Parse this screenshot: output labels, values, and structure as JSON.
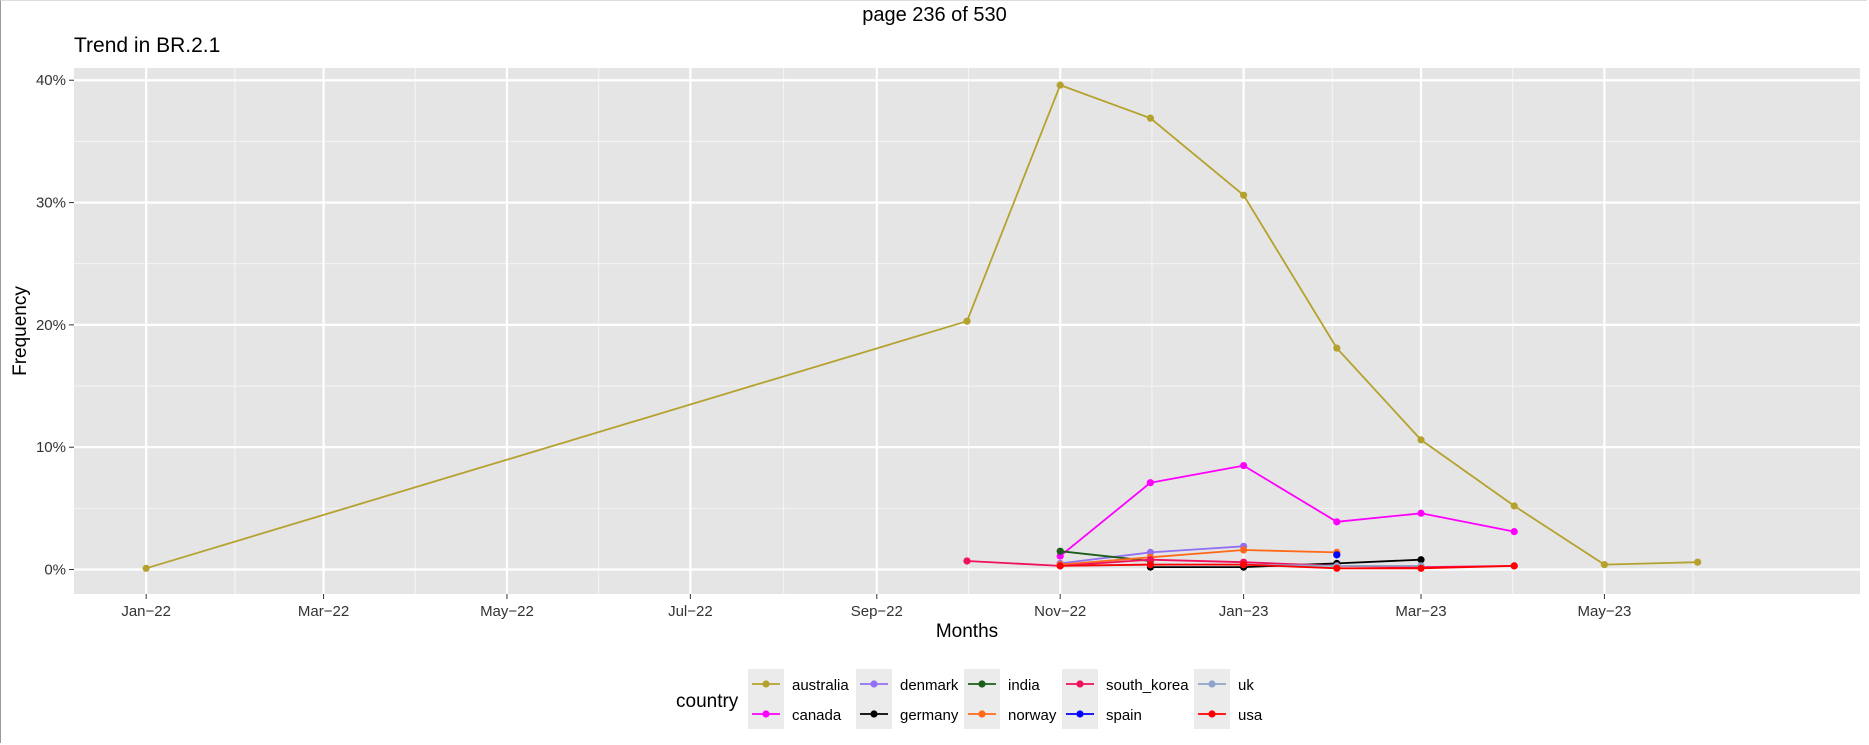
{
  "page_label": "page 236 of 530",
  "chart_data": {
    "type": "line",
    "title": "Trend in BR.2.1",
    "xlabel": "Months",
    "ylabel": "Frequency",
    "ylim": [
      -2,
      41
    ],
    "y_ticks": [
      0,
      10,
      20,
      30,
      40
    ],
    "y_tick_labels": [
      "0%",
      "10%",
      "20%",
      "30%",
      "40%"
    ],
    "x_range": [
      "2021-12-08",
      "2023-07-25"
    ],
    "x_ticks": [
      "2022-01-01",
      "2022-03-01",
      "2022-05-01",
      "2022-07-01",
      "2022-09-01",
      "2022-11-01",
      "2023-01-01",
      "2023-03-01",
      "2023-05-01"
    ],
    "x_tick_labels": [
      "Jan−22",
      "Mar−22",
      "May−22",
      "Jul−22",
      "Sep−22",
      "Nov−22",
      "Jan−23",
      "Mar−23",
      "May−23"
    ],
    "grid": true,
    "legend": {
      "title": "country",
      "position": "bottom"
    },
    "series": [
      {
        "name": "australia",
        "color": "#B5A22E",
        "points": [
          [
            "2022-01-01",
            0.1
          ],
          [
            "2022-10-01",
            20.3
          ],
          [
            "2022-11-01",
            39.6
          ],
          [
            "2022-12-01",
            36.9
          ],
          [
            "2023-01-01",
            30.6
          ],
          [
            "2023-02-01",
            18.1
          ],
          [
            "2023-03-01",
            10.6
          ],
          [
            "2023-04-01",
            5.2
          ],
          [
            "2023-05-01",
            0.4
          ],
          [
            "2023-06-01",
            0.6
          ]
        ]
      },
      {
        "name": "canada",
        "color": "#FF00FF",
        "points": [
          [
            "2022-11-01",
            1.1
          ],
          [
            "2022-12-01",
            7.1
          ],
          [
            "2023-01-01",
            8.5
          ],
          [
            "2023-02-01",
            3.9
          ],
          [
            "2023-03-01",
            4.6
          ],
          [
            "2023-04-01",
            3.1
          ]
        ]
      },
      {
        "name": "denmark",
        "color": "#9370F0",
        "points": [
          [
            "2022-11-01",
            0.5
          ],
          [
            "2022-12-01",
            1.4
          ],
          [
            "2023-01-01",
            1.9
          ]
        ]
      },
      {
        "name": "germany",
        "color": "#000000",
        "points": [
          [
            "2022-12-01",
            0.2
          ],
          [
            "2023-01-01",
            0.2
          ],
          [
            "2023-02-01",
            0.5
          ],
          [
            "2023-03-01",
            0.8
          ]
        ]
      },
      {
        "name": "india",
        "color": "#1A5E1A",
        "points": [
          [
            "2022-11-01",
            1.5
          ],
          [
            "2022-12-01",
            0.7
          ]
        ]
      },
      {
        "name": "norway",
        "color": "#FF6A1A",
        "points": [
          [
            "2022-11-01",
            0.4
          ],
          [
            "2022-12-01",
            1.0
          ],
          [
            "2023-01-01",
            1.6
          ],
          [
            "2023-02-01",
            1.4
          ]
        ]
      },
      {
        "name": "south_korea",
        "color": "#F0105E",
        "points": [
          [
            "2022-10-01",
            0.7
          ],
          [
            "2022-11-01",
            0.3
          ],
          [
            "2022-12-01",
            0.8
          ],
          [
            "2023-01-01",
            0.6
          ],
          [
            "2023-02-01",
            0.3
          ],
          [
            "2023-03-01",
            0.2
          ],
          [
            "2023-04-01",
            0.3
          ]
        ]
      },
      {
        "name": "spain",
        "color": "#0000FF",
        "points": [
          [
            "2023-02-01",
            1.2
          ]
        ]
      },
      {
        "name": "uk",
        "color": "#8FA3C8",
        "points": [
          [
            "2022-11-01",
            0.3
          ],
          [
            "2022-12-01",
            0.4
          ],
          [
            "2023-01-01",
            0.4
          ],
          [
            "2023-02-01",
            0.3
          ],
          [
            "2023-03-01",
            0.3
          ]
        ]
      },
      {
        "name": "usa",
        "color": "#FF0000",
        "points": [
          [
            "2022-11-01",
            0.3
          ],
          [
            "2022-12-01",
            0.4
          ],
          [
            "2023-01-01",
            0.4
          ],
          [
            "2023-02-01",
            0.1
          ],
          [
            "2023-03-01",
            0.1
          ],
          [
            "2023-04-01",
            0.3
          ]
        ]
      }
    ]
  }
}
